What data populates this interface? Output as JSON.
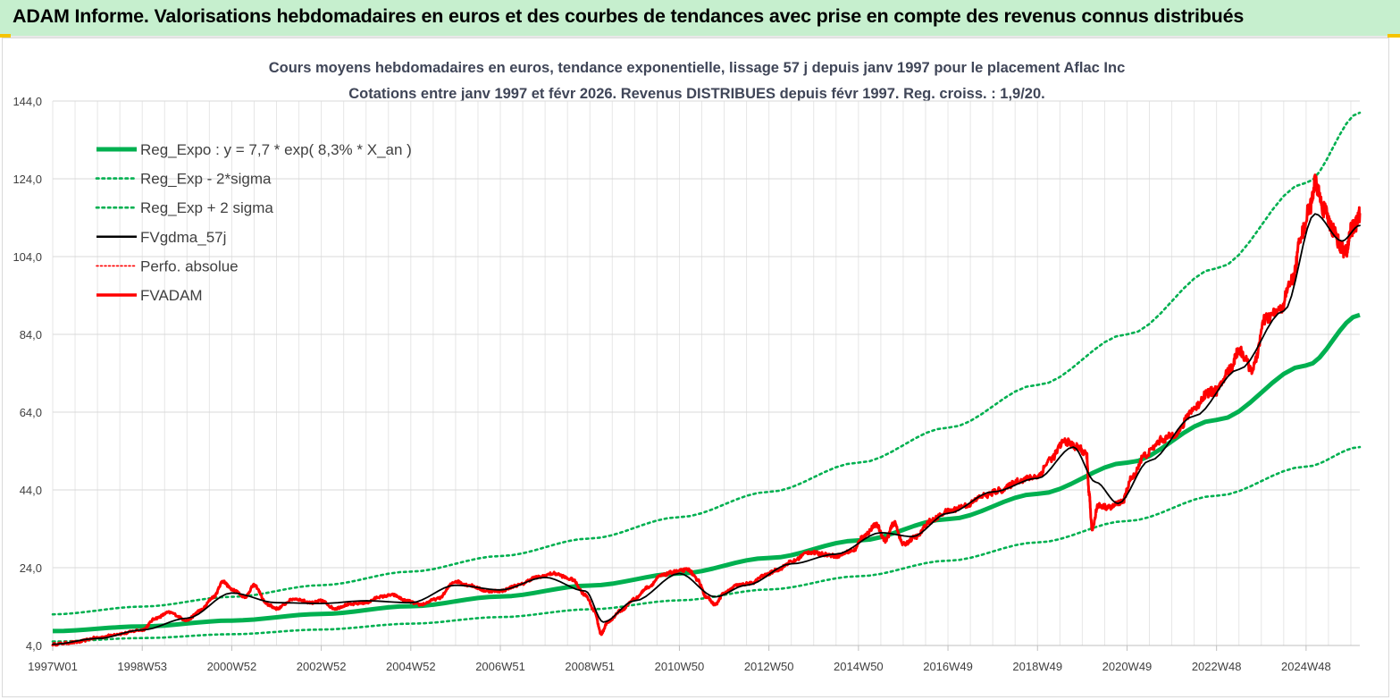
{
  "banner": {
    "title": "ADAM Informe. Valorisations hebdomadaires en euros et des courbes de tendances avec prise en compte des revenus connus distribués"
  },
  "colors": {
    "reg": "#00b050",
    "black": "#000000",
    "red": "#ff0000",
    "banner_bg": "#c6efce",
    "accent": "#f5c400"
  },
  "chart_data": {
    "type": "line",
    "title_line1": "Cours moyens  hebdomadaires en euros, tendance exponentielle, lissage 57 j depuis janv 1997  pour le placement Aflac Inc",
    "title_line2": "Cotations entre janv 1997  et févr  2026.  Revenus DISTRIBUES  depuis févr 1997.  Reg. croiss. : 1,9/20.",
    "ylim": [
      4,
      144
    ],
    "xlim": [
      1997.0,
      2026.2
    ],
    "y_ticks": [
      "144,0",
      "124,0",
      "104,0",
      "84,0",
      "64,0",
      "44,0",
      "24,0",
      "4,0"
    ],
    "x_ticks": [
      {
        "label": "1997W01",
        "x": 1997.0
      },
      {
        "label": "1998W53",
        "x": 1999.0
      },
      {
        "label": "2000W52",
        "x": 2001.0
      },
      {
        "label": "2002W52",
        "x": 2003.0
      },
      {
        "label": "2004W52",
        "x": 2005.0
      },
      {
        "label": "2006W51",
        "x": 2007.0
      },
      {
        "label": "2008W51",
        "x": 2009.0
      },
      {
        "label": "2010W50",
        "x": 2011.0
      },
      {
        "label": "2012W50",
        "x": 2013.0
      },
      {
        "label": "2014W50",
        "x": 2015.0
      },
      {
        "label": "2016W49",
        "x": 2017.0
      },
      {
        "label": "2018W49",
        "x": 2019.0
      },
      {
        "label": "2020W49",
        "x": 2021.0
      },
      {
        "label": "2022W48",
        "x": 2023.0
      },
      {
        "label": "2024W48",
        "x": 2025.0
      }
    ],
    "legend": [
      {
        "name": "Reg_Expo : y = 7,7 * exp( 8,3% *  X_an )",
        "style": "reg"
      },
      {
        "name": "Reg_Exp - 2*sigma",
        "style": "regdot"
      },
      {
        "name": "Reg_Exp + 2 sigma",
        "style": "regdot"
      },
      {
        "name": "FVgdma_57j",
        "style": "black"
      },
      {
        "name": "Perfo. absolue",
        "style": "reddot"
      },
      {
        "name": "FVADAM",
        "style": "red"
      }
    ],
    "series": [
      {
        "name": "Reg_Expo",
        "points": [
          [
            1997.0,
            7.7
          ],
          [
            1999.0,
            8.9
          ],
          [
            2001.0,
            10.4
          ],
          [
            2003.0,
            12.1
          ],
          [
            2005.0,
            14.1
          ],
          [
            2007.0,
            16.6
          ],
          [
            2009.0,
            19.4
          ],
          [
            2011.0,
            22.5
          ],
          [
            2013.0,
            26.5
          ],
          [
            2015.0,
            31.0
          ],
          [
            2017.0,
            36.5
          ],
          [
            2019.0,
            43.0
          ],
          [
            2021.0,
            51.0
          ],
          [
            2023.0,
            62.0
          ],
          [
            2025.0,
            76.0
          ],
          [
            2026.2,
            89.0
          ]
        ]
      },
      {
        "name": "Reg_Exp - 2*sigma",
        "points": [
          [
            1997.0,
            5.0
          ],
          [
            1999.0,
            5.9
          ],
          [
            2001.0,
            6.9
          ],
          [
            2003.0,
            8.1
          ],
          [
            2005.0,
            9.6
          ],
          [
            2007.0,
            11.3
          ],
          [
            2009.0,
            13.3
          ],
          [
            2011.0,
            15.6
          ],
          [
            2013.0,
            18.4
          ],
          [
            2015.0,
            21.8
          ],
          [
            2017.0,
            25.8
          ],
          [
            2019.0,
            30.5
          ],
          [
            2021.0,
            36.0
          ],
          [
            2023.0,
            42.5
          ],
          [
            2025.0,
            50.0
          ],
          [
            2026.2,
            55.0
          ]
        ]
      },
      {
        "name": "Reg_Exp + 2 sigma",
        "points": [
          [
            1997.0,
            12.0
          ],
          [
            1999.0,
            14.0
          ],
          [
            2001.0,
            16.5
          ],
          [
            2003.0,
            19.5
          ],
          [
            2005.0,
            23.0
          ],
          [
            2007.0,
            27.0
          ],
          [
            2009.0,
            31.5
          ],
          [
            2011.0,
            37.0
          ],
          [
            2013.0,
            43.5
          ],
          [
            2015.0,
            51.0
          ],
          [
            2017.0,
            60.0
          ],
          [
            2019.0,
            71.0
          ],
          [
            2021.0,
            84.0
          ],
          [
            2023.0,
            101.0
          ],
          [
            2025.0,
            123.0
          ],
          [
            2026.2,
            141.0
          ]
        ]
      },
      {
        "name": "FVADAM",
        "points": [
          [
            1997.0,
            4.3
          ],
          [
            1997.5,
            4.8
          ],
          [
            1998.0,
            6.0
          ],
          [
            1998.5,
            7.0
          ],
          [
            1999.0,
            8.0
          ],
          [
            1999.3,
            11.0
          ],
          [
            1999.6,
            12.5
          ],
          [
            2000.0,
            10.5
          ],
          [
            2000.3,
            13.0
          ],
          [
            2000.6,
            16.5
          ],
          [
            2000.8,
            20.5
          ],
          [
            2001.0,
            18.5
          ],
          [
            2001.3,
            16.5
          ],
          [
            2001.5,
            19.5
          ],
          [
            2001.8,
            14.5
          ],
          [
            2002.0,
            13.5
          ],
          [
            2002.4,
            16.0
          ],
          [
            2002.8,
            15.0
          ],
          [
            2003.0,
            15.5
          ],
          [
            2003.3,
            13.5
          ],
          [
            2003.6,
            14.5
          ],
          [
            2004.0,
            15.0
          ],
          [
            2004.3,
            16.5
          ],
          [
            2004.6,
            17.0
          ],
          [
            2004.9,
            15.5
          ],
          [
            2005.2,
            14.5
          ],
          [
            2005.6,
            16.0
          ],
          [
            2006.0,
            20.5
          ],
          [
            2006.3,
            19.5
          ],
          [
            2006.7,
            18.0
          ],
          [
            2007.0,
            18.0
          ],
          [
            2007.4,
            19.5
          ],
          [
            2007.8,
            21.5
          ],
          [
            2008.2,
            22.5
          ],
          [
            2008.6,
            21.0
          ],
          [
            2008.9,
            17.0
          ],
          [
            2009.1,
            13.0
          ],
          [
            2009.25,
            7.0
          ],
          [
            2009.4,
            10.0
          ],
          [
            2009.7,
            13.0
          ],
          [
            2010.0,
            16.0
          ],
          [
            2010.3,
            19.0
          ],
          [
            2010.6,
            22.0
          ],
          [
            2010.9,
            23.0
          ],
          [
            2011.2,
            23.5
          ],
          [
            2011.4,
            21.0
          ],
          [
            2011.6,
            16.5
          ],
          [
            2011.8,
            14.5
          ],
          [
            2012.0,
            17.5
          ],
          [
            2012.3,
            19.5
          ],
          [
            2012.6,
            20.0
          ],
          [
            2012.9,
            22.0
          ],
          [
            2013.2,
            23.5
          ],
          [
            2013.5,
            25.5
          ],
          [
            2013.9,
            28.0
          ],
          [
            2014.2,
            27.5
          ],
          [
            2014.5,
            27.0
          ],
          [
            2014.9,
            28.5
          ],
          [
            2015.1,
            32.0
          ],
          [
            2015.4,
            35.0
          ],
          [
            2015.6,
            31.0
          ],
          [
            2015.8,
            35.5
          ],
          [
            2016.0,
            30.0
          ],
          [
            2016.3,
            32.0
          ],
          [
            2016.6,
            36.0
          ],
          [
            2017.0,
            38.5
          ],
          [
            2017.4,
            40.0
          ],
          [
            2017.8,
            42.5
          ],
          [
            2018.2,
            44.0
          ],
          [
            2018.6,
            46.5
          ],
          [
            2019.0,
            47.5
          ],
          [
            2019.3,
            52.0
          ],
          [
            2019.6,
            56.5
          ],
          [
            2019.9,
            55.0
          ],
          [
            2020.1,
            53.0
          ],
          [
            2020.15,
            43.0
          ],
          [
            2020.22,
            34.0
          ],
          [
            2020.35,
            40.0
          ],
          [
            2020.6,
            39.5
          ],
          [
            2020.9,
            41.0
          ],
          [
            2021.1,
            47.0
          ],
          [
            2021.4,
            53.0
          ],
          [
            2021.8,
            57.0
          ],
          [
            2022.1,
            58.5
          ],
          [
            2022.5,
            65.0
          ],
          [
            2022.8,
            69.0
          ],
          [
            2023.0,
            69.5
          ],
          [
            2023.3,
            75.0
          ],
          [
            2023.5,
            80.0
          ],
          [
            2023.8,
            75.0
          ],
          [
            2024.1,
            88.0
          ],
          [
            2024.4,
            90.0
          ],
          [
            2024.7,
            98.0
          ],
          [
            2024.9,
            110.0
          ],
          [
            2025.1,
            117.0
          ],
          [
            2025.2,
            123.0
          ],
          [
            2025.4,
            116.0
          ],
          [
            2025.6,
            111.0
          ],
          [
            2025.8,
            106.0
          ],
          [
            2025.9,
            105.0
          ],
          [
            2026.0,
            111.0
          ],
          [
            2026.1,
            112.0
          ],
          [
            2026.2,
            115.0
          ]
        ]
      },
      {
        "name": "FVgdma_57j",
        "points": [
          [
            1997.0,
            4.3
          ],
          [
            1998.0,
            5.8
          ],
          [
            1999.0,
            8.0
          ],
          [
            2000.0,
            11.0
          ],
          [
            2001.0,
            17.5
          ],
          [
            2002.0,
            15.0
          ],
          [
            2003.0,
            14.8
          ],
          [
            2004.0,
            15.5
          ],
          [
            2005.0,
            15.0
          ],
          [
            2006.0,
            19.5
          ],
          [
            2007.0,
            18.3
          ],
          [
            2008.0,
            21.5
          ],
          [
            2008.9,
            18.0
          ],
          [
            2009.3,
            10.0
          ],
          [
            2010.0,
            15.5
          ],
          [
            2011.0,
            22.5
          ],
          [
            2011.8,
            16.5
          ],
          [
            2012.5,
            19.5
          ],
          [
            2013.5,
            25.0
          ],
          [
            2014.5,
            27.5
          ],
          [
            2015.5,
            33.0
          ],
          [
            2016.2,
            32.0
          ],
          [
            2017.0,
            38.0
          ],
          [
            2018.0,
            43.5
          ],
          [
            2019.0,
            47.0
          ],
          [
            2019.8,
            55.0
          ],
          [
            2020.3,
            46.0
          ],
          [
            2020.8,
            40.5
          ],
          [
            2021.5,
            51.5
          ],
          [
            2022.5,
            63.0
          ],
          [
            2023.5,
            75.0
          ],
          [
            2024.5,
            90.0
          ],
          [
            2025.2,
            115.0
          ],
          [
            2025.8,
            108.0
          ],
          [
            2026.2,
            112.0
          ]
        ]
      }
    ]
  }
}
